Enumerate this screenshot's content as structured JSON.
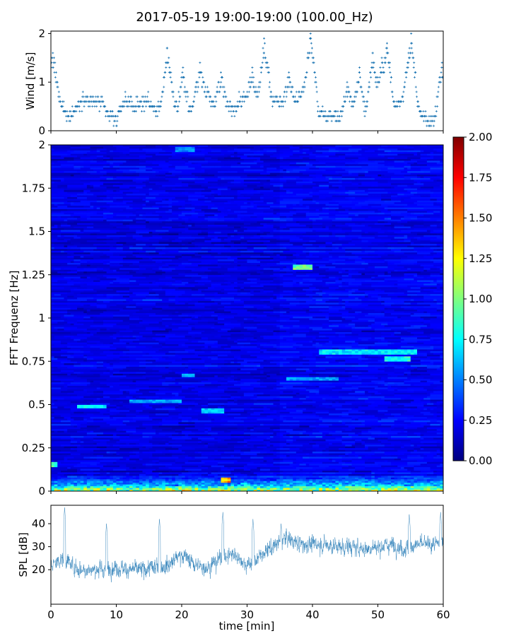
{
  "title": "2017-05-19 19:00-19:00 (100.00_Hz)",
  "colors": {
    "series": "#1f77b4",
    "frame": "#000000"
  },
  "chart_data": [
    {
      "id": "wind",
      "type": "scatter",
      "ylabel": "Wind [m/s]",
      "xlabel": "",
      "xlim": [
        0,
        60
      ],
      "ylim": [
        0,
        2.05
      ],
      "x_ticks": [
        0,
        10,
        20,
        30,
        40,
        50,
        60
      ],
      "y_ticks": [
        0,
        1,
        2
      ],
      "y_tick_labels": [
        "0",
        "1",
        "2"
      ],
      "marker": "+",
      "step": 0.1,
      "profile_x": [
        0,
        1,
        2,
        3,
        4,
        5,
        6,
        7,
        8,
        9,
        10,
        11,
        12,
        13,
        14,
        15,
        16,
        17,
        18,
        19,
        20,
        21,
        22,
        23,
        24,
        25,
        26,
        27,
        28,
        29,
        30,
        31,
        32,
        33,
        34,
        35,
        36,
        37,
        38,
        39,
        40,
        41,
        42,
        43,
        44,
        45,
        46,
        47,
        48,
        49,
        50,
        51,
        52,
        53,
        54,
        55,
        56,
        57,
        58,
        59,
        60
      ],
      "profile_y": [
        1.1,
        0.7,
        0.4,
        0.3,
        0.5,
        0.7,
        0.6,
        0.6,
        0.5,
        0.3,
        0.2,
        0.6,
        0.6,
        0.5,
        0.6,
        0.6,
        0.4,
        0.5,
        0.8,
        0.5,
        0.3,
        0.4,
        0.5,
        0.6,
        0.8,
        0.5,
        0.5,
        0.5,
        0.4,
        0.6,
        0.7,
        0.5,
        0.6,
        0.9,
        0.6,
        0.6,
        0.5,
        0.6,
        0.7,
        0.9,
        1.0,
        0.4,
        0.3,
        0.3,
        0.3,
        0.4,
        0.6,
        0.3,
        0.2,
        0.6,
        0.8,
        0.9,
        0.6,
        0.5,
        0.6,
        0.9,
        0.5,
        0.3,
        0.2,
        0.3,
        0.8
      ],
      "peaks": [
        [
          0.3,
          1.6
        ],
        [
          17.8,
          1.7
        ],
        [
          20.2,
          1.3
        ],
        [
          22.8,
          1.4
        ],
        [
          26.0,
          1.2
        ],
        [
          30.8,
          1.3
        ],
        [
          32.6,
          1.9
        ],
        [
          36.4,
          1.2
        ],
        [
          39.7,
          2.0
        ],
        [
          45.3,
          1.0
        ],
        [
          47.2,
          1.3
        ],
        [
          49.2,
          1.6
        ],
        [
          50.6,
          1.5
        ],
        [
          51.4,
          1.8
        ],
        [
          54.7,
          1.6
        ],
        [
          55.1,
          2.0
        ],
        [
          59.8,
          1.4
        ]
      ]
    },
    {
      "id": "spectrogram",
      "type": "heatmap",
      "ylabel": "FFT Frequenz [Hz]",
      "xlabel": "",
      "xlim": [
        0,
        60
      ],
      "ylim": [
        0,
        2
      ],
      "x_ticks": [
        0,
        10,
        20,
        30,
        40,
        50,
        60
      ],
      "y_ticks": [
        0,
        0.25,
        0.5,
        0.75,
        1,
        1.25,
        1.5,
        1.75,
        2
      ],
      "y_tick_labels": [
        "0",
        "0.25",
        "0.5",
        "0.75",
        "1",
        "1.25",
        "1.5",
        "1.75",
        "2"
      ],
      "colormap": "jet",
      "clim": [
        0,
        2
      ],
      "colorbar_ticks": [
        0,
        0.25,
        0.5,
        0.75,
        1,
        1.25,
        1.5,
        1.75,
        2
      ],
      "colorbar_tick_labels": [
        "0.00",
        "0.25",
        "0.50",
        "0.75",
        "1.00",
        "1.25",
        "1.50",
        "1.75",
        "2.00"
      ],
      "time_bins": 120,
      "freq_bins": 200,
      "background_level": 0.2,
      "low_freq_band": {
        "f_max": 0.12,
        "level": 0.9
      },
      "bright_features": [
        {
          "t0": 0.0,
          "t1": 1.0,
          "f": 0.155,
          "level": 0.9
        },
        {
          "t0": 4.0,
          "t1": 8.5,
          "f": 0.49,
          "level": 0.75
        },
        {
          "t0": 12.0,
          "t1": 20.0,
          "f": 0.52,
          "level": 0.6
        },
        {
          "t0": 23.0,
          "t1": 26.5,
          "f": 0.47,
          "level": 0.7
        },
        {
          "t0": 19.0,
          "t1": 22.0,
          "f": 1.98,
          "level": 0.55
        },
        {
          "t0": 36.0,
          "t1": 44.0,
          "f": 0.65,
          "level": 0.6
        },
        {
          "t0": 41.0,
          "t1": 56.0,
          "f": 0.8,
          "level": 0.75
        },
        {
          "t0": 51.0,
          "t1": 55.0,
          "f": 0.765,
          "level": 0.85
        },
        {
          "t0": 37.0,
          "t1": 40.0,
          "f": 1.295,
          "level": 1.0
        },
        {
          "t0": 20.0,
          "t1": 22.0,
          "f": 0.67,
          "level": 0.6
        },
        {
          "t0": 26.0,
          "t1": 27.5,
          "f": 0.065,
          "level": 1.5
        }
      ]
    },
    {
      "id": "spl",
      "type": "line",
      "ylabel": "SPL [dB]",
      "xlabel": "time [min]",
      "xlim": [
        0,
        60
      ],
      "ylim": [
        5,
        48
      ],
      "x_ticks": [
        0,
        10,
        20,
        30,
        40,
        50,
        60
      ],
      "x_tick_labels": [
        "0",
        "10",
        "20",
        "30",
        "40",
        "50",
        "60"
      ],
      "y_ticks": [
        20,
        30,
        40
      ],
      "y_tick_labels": [
        "20",
        "30",
        "40"
      ],
      "x": [
        0,
        2,
        4,
        6,
        8,
        10,
        12,
        14,
        16,
        18,
        20,
        22,
        24,
        26,
        28,
        30,
        32,
        34,
        36,
        38,
        40,
        42,
        44,
        46,
        48,
        50,
        52,
        54,
        56,
        58,
        60
      ],
      "values": [
        22,
        25,
        20,
        20,
        20,
        21,
        20,
        20,
        21,
        22,
        27,
        22,
        21,
        25,
        27,
        22,
        26,
        30,
        34,
        31,
        31,
        31,
        30,
        30,
        29,
        30,
        31,
        29,
        31,
        31,
        31
      ],
      "spikes": [
        [
          2.1,
          47
        ],
        [
          8.5,
          40
        ],
        [
          16.6,
          42
        ],
        [
          26.3,
          45
        ],
        [
          30.9,
          42
        ],
        [
          35.2,
          40
        ],
        [
          54.8,
          44
        ],
        [
          59.6,
          45
        ]
      ]
    }
  ]
}
